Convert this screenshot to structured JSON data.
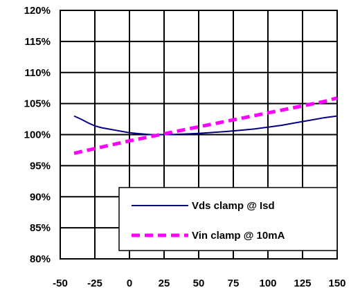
{
  "chart_data": {
    "type": "line",
    "xlim": [
      -50,
      150
    ],
    "ylim": [
      80,
      120
    ],
    "x_ticks": [
      "-50",
      "-25",
      "0",
      "25",
      "50",
      "75",
      "100",
      "125",
      "150"
    ],
    "y_ticks": [
      "80%",
      "85%",
      "90%",
      "95%",
      "100%",
      "105%",
      "110%",
      "115%",
      "120%"
    ],
    "grid": "vertical-and-horizontal",
    "legend_position": "bottom-right",
    "series": [
      {
        "name": "Vds clamp @ Isd",
        "color": "#000080",
        "style": "solid",
        "x": [
          -40,
          -35,
          -30,
          -25,
          -20,
          -15,
          -10,
          -5,
          0,
          5,
          10,
          15,
          20,
          25,
          30,
          40,
          50,
          60,
          70,
          80,
          90,
          100,
          110,
          120,
          130,
          140,
          150
        ],
        "y": [
          103.0,
          102.5,
          101.9,
          101.4,
          101.1,
          100.9,
          100.7,
          100.5,
          100.3,
          100.2,
          100.1,
          100.0,
          100.0,
          100.0,
          100.0,
          100.1,
          100.2,
          100.35,
          100.5,
          100.7,
          100.9,
          101.2,
          101.5,
          101.9,
          102.3,
          102.7,
          103.0
        ]
      },
      {
        "name": "Vin clamp @ 10mA",
        "color": "#ff00ff",
        "style": "dashed",
        "x": [
          -40,
          -20,
          0,
          20,
          40,
          60,
          80,
          100,
          120,
          140,
          150
        ],
        "y": [
          97.0,
          98.0,
          99.0,
          99.9,
          100.8,
          101.7,
          102.6,
          103.5,
          104.4,
          105.3,
          105.9
        ]
      }
    ]
  }
}
